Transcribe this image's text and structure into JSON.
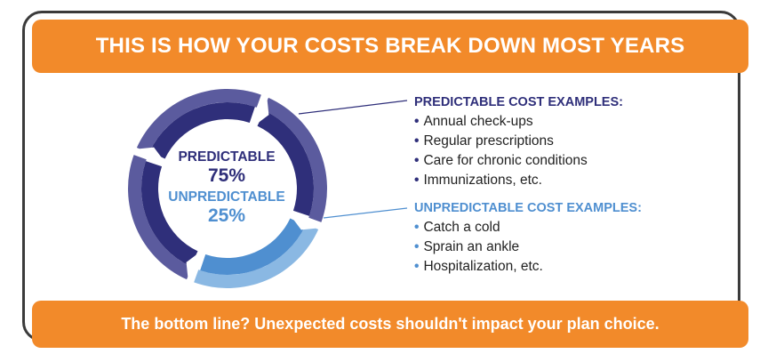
{
  "header": {
    "title": "THIS IS HOW YOUR COSTS BREAK DOWN MOST YEARS"
  },
  "footer": {
    "text": "The bottom line? Unexpected costs shouldn't impact your plan choice."
  },
  "chart_data": {
    "type": "pie",
    "segments": [
      {
        "label": "PREDICTABLE",
        "value": 75,
        "display": "75%"
      },
      {
        "label": "UNPREDICTABLE",
        "value": 25,
        "display": "25%"
      }
    ]
  },
  "predictable": {
    "heading": "PREDICTABLE COST EXAMPLES:",
    "items": [
      "Annual check-ups",
      "Regular prescriptions",
      "Care for chronic conditions",
      "Immunizations, etc."
    ]
  },
  "unpredictable": {
    "heading": "UNPREDICTABLE COST EXAMPLES:",
    "items": [
      "Catch a cold",
      "Sprain an ankle",
      "Hospitalization, etc."
    ]
  },
  "colors": {
    "orange": "#f28a2a",
    "predictable_outer": "#5b5b9e",
    "predictable_inner": "#2f2f7a",
    "unpredictable_outer": "#8ab8e3",
    "unpredictable_inner": "#4f8fd0",
    "unpredictable_text": "#4f8fd0"
  }
}
